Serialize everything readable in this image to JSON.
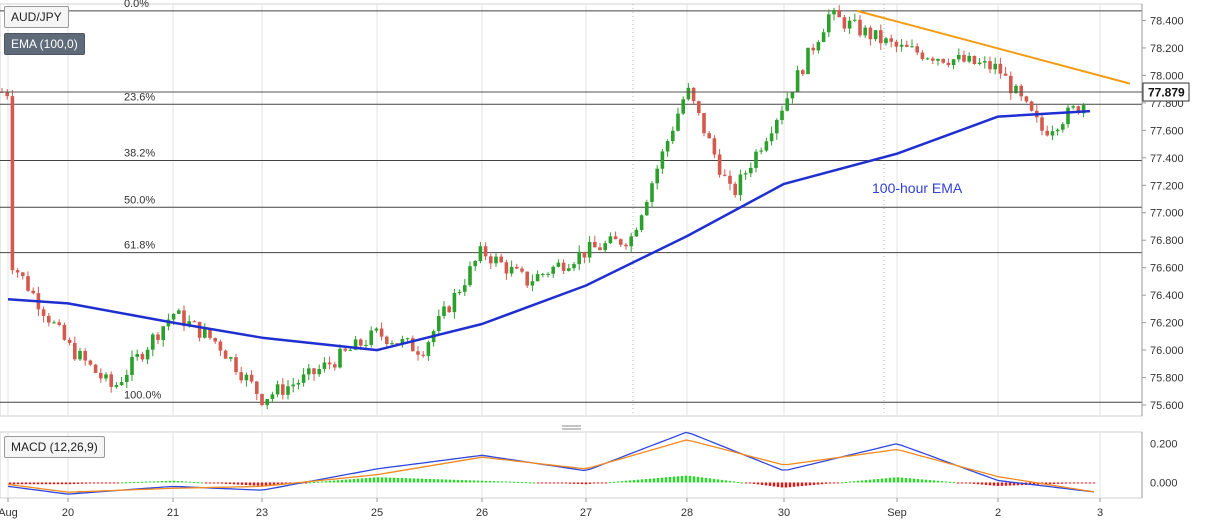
{
  "symbol_label": "AUD/JPY",
  "ema_label": "EMA (100,0)",
  "macd_label": "MACD (12,26,9)",
  "ema_annotation": "100-hour EMA",
  "current_price": "77.879",
  "colors": {
    "up": "#2ca02c",
    "down": "#d35a4f",
    "ema": "#1f2fd0",
    "trendline": "#f39c12",
    "macd_line": "#2f47e0",
    "signal_line": "#f28a1f",
    "hist_pos": "#22dd22",
    "hist_neg": "#ee1111",
    "fib": "#444444"
  },
  "chart_data": [
    {
      "type": "candlestick",
      "title": "AUD/JPY",
      "ylim": [
        75.52,
        78.52
      ],
      "y_ticks": [
        "78.400",
        "78.200",
        "78.000",
        "77.800",
        "77.600",
        "77.400",
        "77.200",
        "77.000",
        "76.800",
        "76.600",
        "76.400",
        "76.200",
        "76.000",
        "75.800",
        "75.600"
      ],
      "x_ticks": [
        "Aug",
        "20",
        "21",
        "23",
        "25",
        "26",
        "27",
        "28",
        "30",
        "Sep",
        "2",
        "3"
      ],
      "fibonacci": [
        {
          "label": "0.0%",
          "value": 78.47
        },
        {
          "label": "23.6%",
          "value": 77.79
        },
        {
          "label": "38.2%",
          "value": 77.38
        },
        {
          "label": "50.0%",
          "value": 77.04
        },
        {
          "label": "61.8%",
          "value": 76.71
        },
        {
          "label": "100.0%",
          "value": 75.62
        }
      ],
      "price_line": 77.879,
      "ema_series": {
        "name": "EMA (100,0)",
        "points": [
          [
            "Aug",
            76.37
          ],
          [
            "20",
            76.34
          ],
          [
            "21",
            76.2
          ],
          [
            "23",
            76.09
          ],
          [
            "25",
            76.0
          ],
          [
            "26",
            76.19
          ],
          [
            "27",
            76.47
          ],
          [
            "28",
            76.83
          ],
          [
            "30",
            77.21
          ],
          [
            "Sep",
            77.43
          ],
          [
            "2",
            77.7
          ],
          [
            "3",
            77.74
          ]
        ]
      },
      "trendline": {
        "from": [
          78.47
        ],
        "to": [
          77.94
        ]
      },
      "key_path": [
        [
          "Aug",
          76.68
        ],
        [
          "20",
          76.03
        ],
        [
          "20",
          75.72
        ],
        [
          "21",
          76.27
        ],
        [
          "21",
          76.05
        ],
        [
          "23",
          75.65
        ],
        [
          "23",
          75.8
        ],
        [
          "25",
          76.12
        ],
        [
          "25",
          76.0
        ],
        [
          "26",
          76.72
        ],
        [
          "26",
          76.5
        ],
        [
          "27",
          76.72
        ],
        [
          "27",
          76.82
        ],
        [
          "28",
          77.9
        ],
        [
          "28",
          77.12
        ],
        [
          "30",
          77.8
        ],
        [
          "30",
          78.44
        ],
        [
          "Sep",
          78.2
        ],
        [
          "2",
          78.05
        ],
        [
          "2",
          77.59
        ],
        [
          "3",
          77.88
        ]
      ]
    },
    {
      "type": "line",
      "title": "MACD (12,26,9)",
      "ylim": [
        -0.08,
        0.26
      ],
      "y_ticks": [
        "0.200",
        "0.000"
      ],
      "series": [
        {
          "name": "MACD",
          "key_path": [
            [
              "Aug",
              -0.02
            ],
            [
              "20",
              -0.06
            ],
            [
              "21",
              -0.02
            ],
            [
              "23",
              -0.04
            ],
            [
              "25",
              0.07
            ],
            [
              "26",
              0.14
            ],
            [
              "27",
              0.06
            ],
            [
              "28",
              0.26
            ],
            [
              "30",
              0.06
            ],
            [
              "Sep",
              0.2
            ],
            [
              "2",
              0.01
            ],
            [
              "3",
              -0.05
            ]
          ]
        },
        {
          "name": "Signal",
          "key_path": [
            [
              "Aug",
              -0.01
            ],
            [
              "20",
              -0.05
            ],
            [
              "21",
              -0.03
            ],
            [
              "23",
              -0.02
            ],
            [
              "25",
              0.04
            ],
            [
              "26",
              0.13
            ],
            [
              "27",
              0.07
            ],
            [
              "28",
              0.22
            ],
            [
              "30",
              0.09
            ],
            [
              "Sep",
              0.17
            ],
            [
              "2",
              0.03
            ],
            [
              "3",
              -0.05
            ]
          ]
        }
      ]
    }
  ]
}
